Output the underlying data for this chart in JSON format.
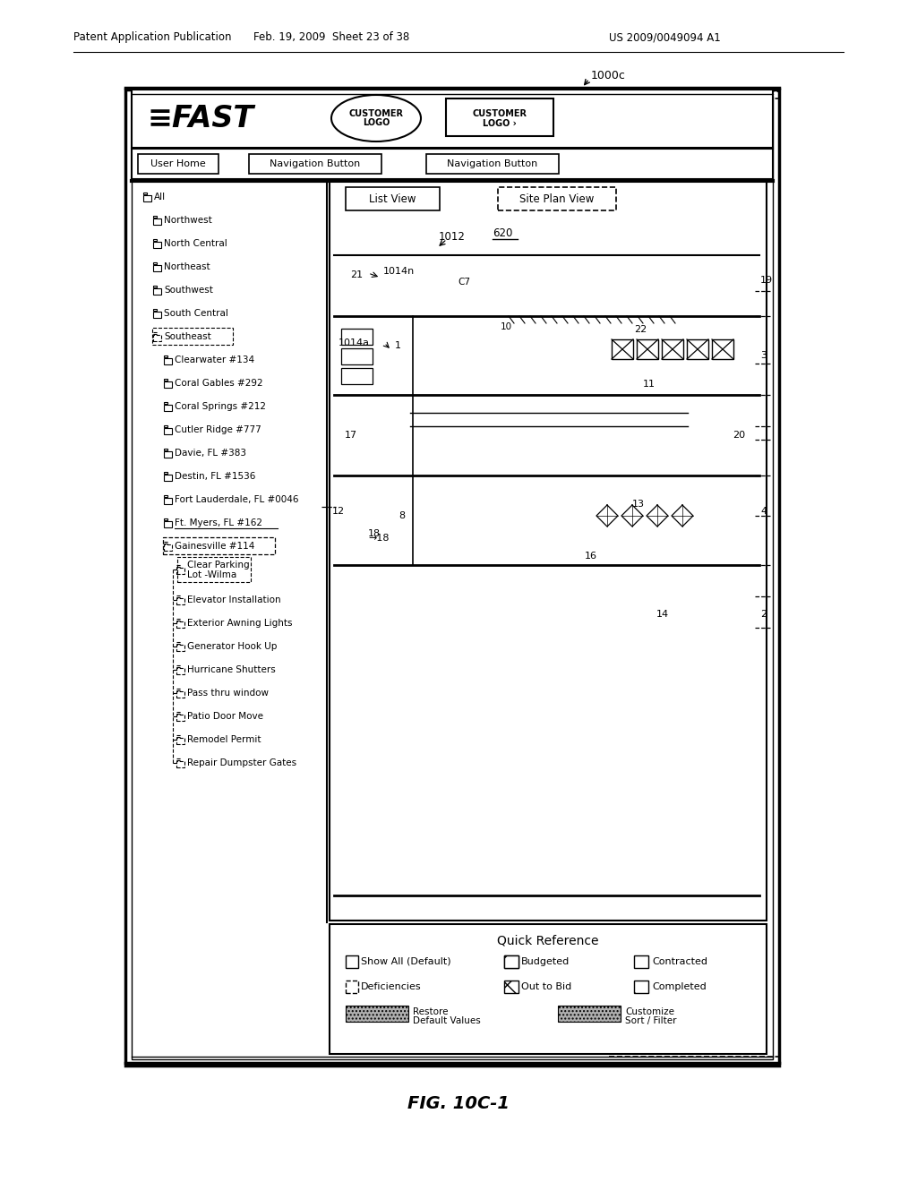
{
  "page_title_left": "Patent Application Publication",
  "page_title_center": "Feb. 19, 2009  Sheet 23 of 38",
  "page_title_right": "US 2009/0049094 A1",
  "label_1000c": "1000c",
  "fig_caption": "FIG. 10C-1",
  "tree_items": [
    {
      "label": "All",
      "level": 0,
      "dashed": false
    },
    {
      "label": "Northwest",
      "level": 1,
      "dashed": false
    },
    {
      "label": "North Central",
      "level": 1,
      "dashed": false
    },
    {
      "label": "Northeast",
      "level": 1,
      "dashed": false
    },
    {
      "label": "Southwest",
      "level": 1,
      "dashed": false
    },
    {
      "label": "South Central",
      "level": 1,
      "dashed": false
    },
    {
      "label": "Southeast",
      "level": 1,
      "dashed": true
    },
    {
      "label": "Clearwater #134",
      "level": 2,
      "dashed": false
    },
    {
      "label": "Coral Gables #292",
      "level": 2,
      "dashed": false
    },
    {
      "label": "Coral Springs #212",
      "level": 2,
      "dashed": false
    },
    {
      "label": "Cutler Ridge #777",
      "level": 2,
      "dashed": false
    },
    {
      "label": "Davie, FL #383",
      "level": 2,
      "dashed": false
    },
    {
      "label": "Destin, FL #1536",
      "level": 2,
      "dashed": false
    },
    {
      "label": "Fort Lauderdale, FL #0046",
      "level": 2,
      "dashed": false
    },
    {
      "label": "Ft. Myers, FL #162",
      "level": 2,
      "dashed": false
    },
    {
      "label": "Gainesville #114",
      "level": 2,
      "dashed": true
    },
    {
      "label": "Clear Parking\nLot -Wilma",
      "level": 3,
      "dashed": true
    },
    {
      "label": "Elevator Installation",
      "level": 3,
      "dashed": true
    },
    {
      "label": "Exterior Awning Lights",
      "level": 3,
      "dashed": true
    },
    {
      "label": "Generator Hook Up",
      "level": 3,
      "dashed": true
    },
    {
      "label": "Hurricane Shutters",
      "level": 3,
      "dashed": true
    },
    {
      "label": "Pass thru window",
      "level": 3,
      "dashed": true
    },
    {
      "label": "Patio Door Move",
      "level": 3,
      "dashed": true
    },
    {
      "label": "Remodel Permit",
      "level": 3,
      "dashed": true
    },
    {
      "label": "Repair Dumpster Gates",
      "level": 3,
      "dashed": true
    }
  ],
  "bg_color": "#ffffff"
}
